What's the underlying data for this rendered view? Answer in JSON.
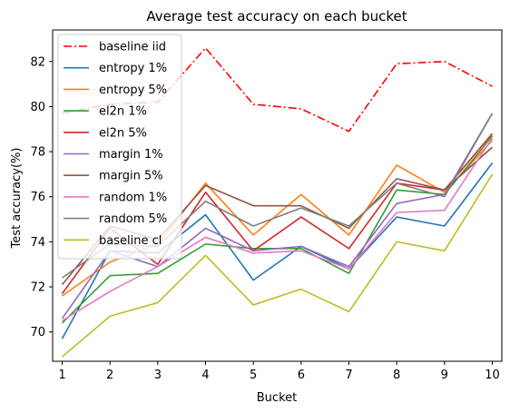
{
  "chart_data": {
    "type": "line",
    "title": "Average test accuracy on each bucket",
    "xlabel": "Bucket",
    "ylabel": "Test accuracy(%)",
    "x": [
      1,
      2,
      3,
      4,
      5,
      6,
      7,
      8,
      9,
      10
    ],
    "x_ticks": [
      "1",
      "2",
      "3",
      "4",
      "5",
      "6",
      "7",
      "8",
      "9",
      "10"
    ],
    "xlim": [
      0.8,
      10.2
    ],
    "ylim": [
      68.7,
      83.4
    ],
    "y_ticks": [
      "70",
      "72",
      "74",
      "76",
      "78",
      "80",
      "82"
    ],
    "grid": false,
    "legend": {
      "location": "upper-left",
      "entries": [
        "baseline iid",
        "entropy 1%",
        "entropy 5%",
        "el2n 1%",
        "el2n 5%",
        "margin 1%",
        "margin 5%",
        "random 1%",
        "random 5%",
        "baseline cl"
      ]
    },
    "series": [
      {
        "name": "baseline iid",
        "color": "#ff0000",
        "style": "dashdot",
        "values": [
          79.7,
          80.1,
          80.2,
          82.6,
          80.1,
          79.9,
          78.9,
          81.9,
          82.0,
          80.9
        ]
      },
      {
        "name": "entropy 1%",
        "color": "#1f77b4",
        "style": "solid",
        "values": [
          69.7,
          73.6,
          73.5,
          75.2,
          72.3,
          73.8,
          72.8,
          75.1,
          74.7,
          77.5
        ]
      },
      {
        "name": "entropy 5%",
        "color": "#ff7f0e",
        "style": "solid",
        "values": [
          71.6,
          73.1,
          73.9,
          76.6,
          74.3,
          76.1,
          74.3,
          77.4,
          76.2,
          78.5
        ]
      },
      {
        "name": "el2n 1%",
        "color": "#2ca02c",
        "style": "solid",
        "values": [
          70.4,
          72.5,
          72.6,
          73.9,
          73.7,
          73.7,
          72.6,
          76.3,
          76.1,
          78.7
        ]
      },
      {
        "name": "el2n 5%",
        "color": "#d62728",
        "style": "solid",
        "values": [
          71.7,
          74.6,
          73.0,
          76.2,
          73.6,
          75.1,
          73.7,
          76.6,
          76.3,
          78.8
        ]
      },
      {
        "name": "margin 1%",
        "color": "#9467bd",
        "style": "solid",
        "values": [
          70.6,
          73.6,
          72.9,
          74.6,
          73.6,
          73.8,
          72.9,
          75.7,
          76.1,
          79.7
        ]
      },
      {
        "name": "margin 5%",
        "color": "#8c564b",
        "style": "solid",
        "values": [
          72.1,
          74.7,
          74.1,
          76.5,
          75.6,
          75.6,
          74.6,
          76.8,
          76.3,
          78.2
        ]
      },
      {
        "name": "random 1%",
        "color": "#e377c2",
        "style": "solid",
        "values": [
          70.5,
          71.8,
          72.9,
          74.2,
          73.5,
          73.6,
          72.8,
          75.3,
          75.4,
          78.6
        ]
      },
      {
        "name": "random 5%",
        "color": "#7f7f7f",
        "style": "solid",
        "values": [
          72.4,
          73.9,
          73.8,
          75.8,
          74.7,
          75.5,
          74.7,
          76.6,
          76.0,
          79.7
        ]
      },
      {
        "name": "baseline cl",
        "color": "#bcbd22",
        "style": "solid",
        "values": [
          68.9,
          70.7,
          71.3,
          73.4,
          71.2,
          71.9,
          70.9,
          74.0,
          73.6,
          77.0
        ]
      }
    ]
  }
}
